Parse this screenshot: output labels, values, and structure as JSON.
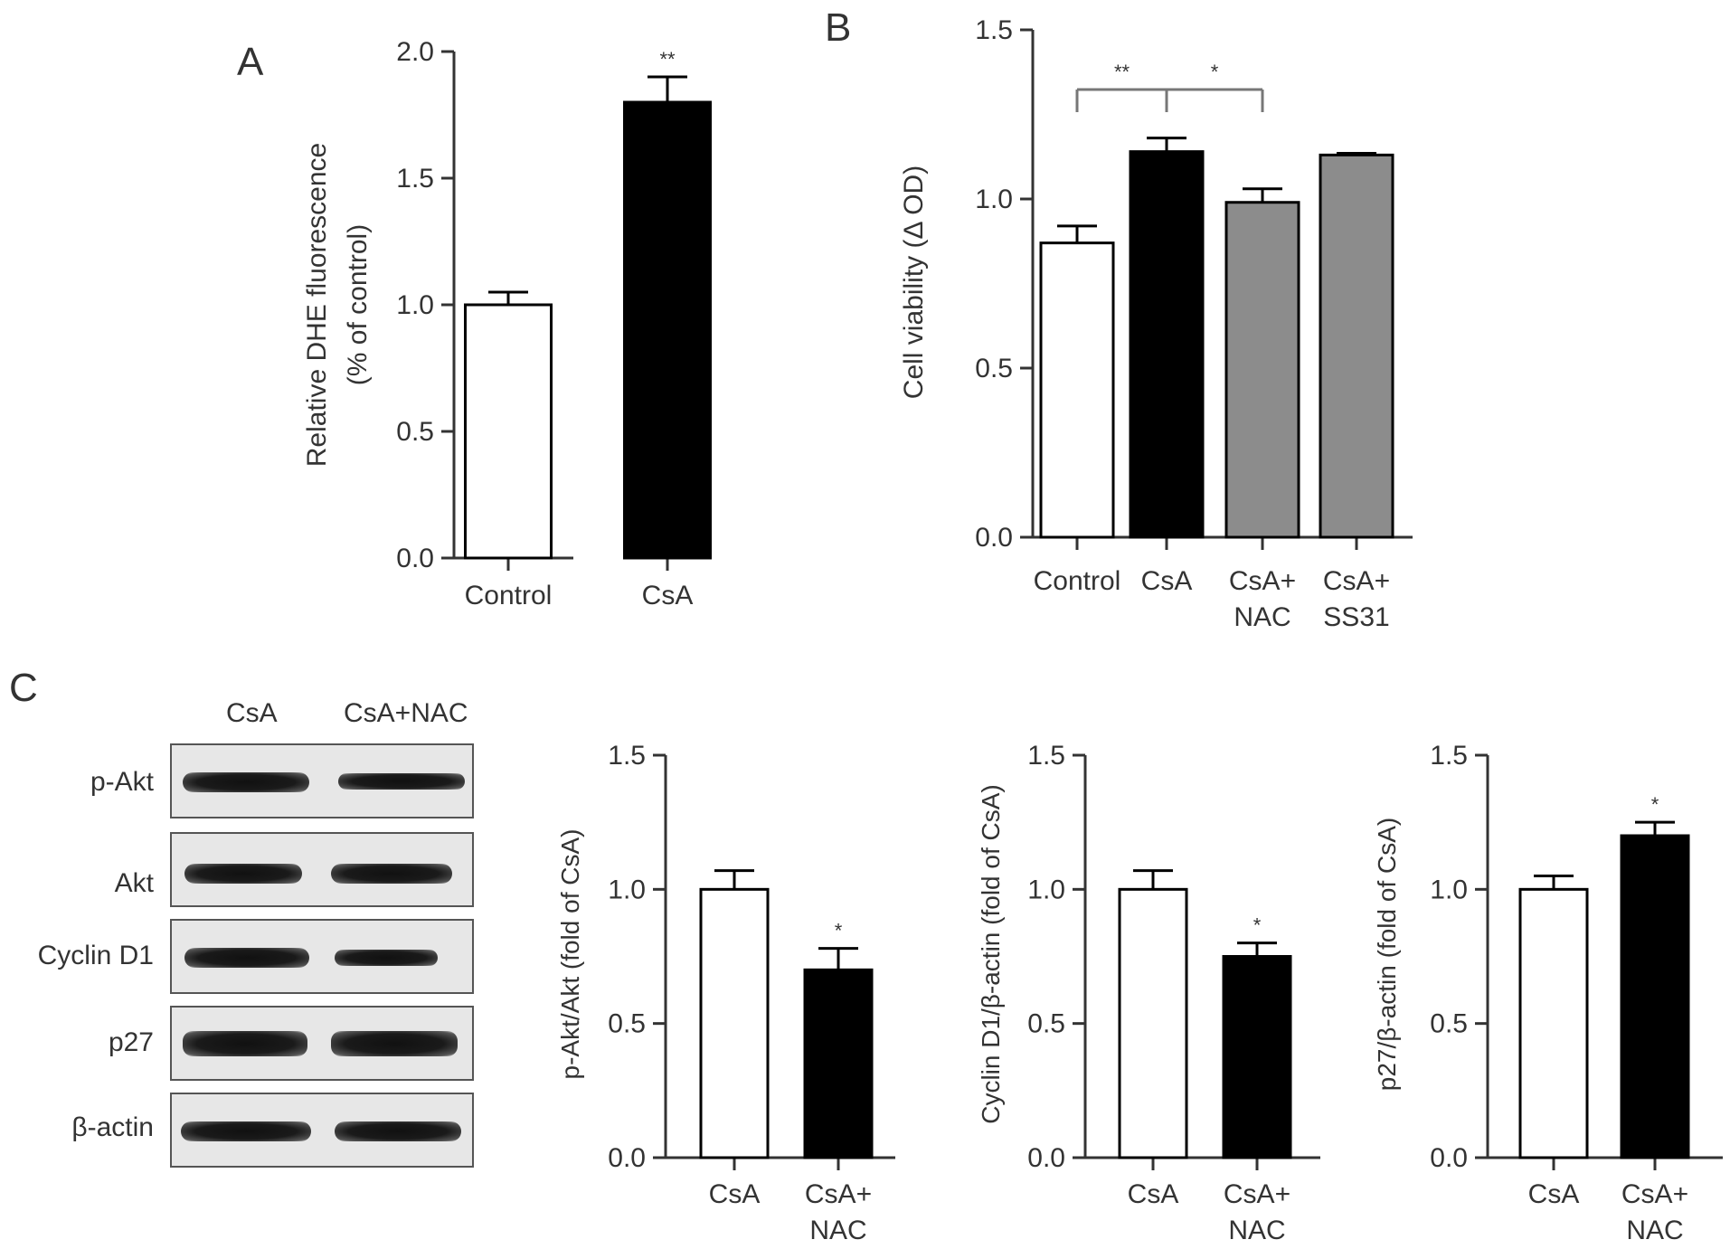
{
  "panels": {
    "A": {
      "letter": "A"
    },
    "B": {
      "letter": "B"
    },
    "C": {
      "letter": "C"
    }
  },
  "western_blot": {
    "lanes": [
      "CsA",
      "CsA+NAC"
    ],
    "rows": [
      "p-Akt",
      "Akt",
      "Cyclin D1",
      "p27",
      "β-actin"
    ]
  },
  "chart_data": [
    {
      "id": "A",
      "type": "bar",
      "categories": [
        "Control",
        "CsA"
      ],
      "values": [
        1.0,
        1.8
      ],
      "errors": [
        0.05,
        0.1
      ],
      "colors": [
        "#ffffff",
        "#000000"
      ],
      "significance": [
        "",
        "**"
      ],
      "ylabel": [
        "Relative DHE fluorescence",
        "(% of control)"
      ],
      "yticks": [
        "0.0",
        "0.5",
        "1.0",
        "1.5",
        "2.0"
      ],
      "ylim": [
        0,
        2.0
      ]
    },
    {
      "id": "B",
      "type": "bar",
      "categories": [
        [
          "Control"
        ],
        [
          "CsA"
        ],
        [
          "CsA+",
          "NAC"
        ],
        [
          "CsA+",
          "SS31"
        ]
      ],
      "values": [
        0.87,
        1.14,
        0.99,
        1.13
      ],
      "errors": [
        0.05,
        0.04,
        0.04,
        0.005
      ],
      "colors": [
        "#ffffff",
        "#000000",
        "#8c8c8c",
        "#8c8c8c"
      ],
      "ylabel": [
        "Cell viability (Δ OD)"
      ],
      "yticks": [
        "0.0",
        "0.5",
        "1.0",
        "1.5"
      ],
      "ylim": [
        0,
        1.5
      ],
      "brackets": [
        {
          "from": 0,
          "to": 1,
          "label": "**"
        },
        {
          "from": 1,
          "to": 2,
          "label": "*"
        }
      ]
    },
    {
      "id": "C1",
      "type": "bar",
      "categories": [
        [
          "CsA"
        ],
        [
          "CsA+",
          "NAC"
        ]
      ],
      "values": [
        1.0,
        0.7
      ],
      "errors": [
        0.07,
        0.08
      ],
      "colors": [
        "#ffffff",
        "#000000"
      ],
      "significance": [
        "",
        "*"
      ],
      "ylabel": [
        "p-Akt/Akt (fold of CsA)"
      ],
      "yticks": [
        "0.0",
        "0.5",
        "1.0",
        "1.5"
      ],
      "ylim": [
        0,
        1.5
      ]
    },
    {
      "id": "C2",
      "type": "bar",
      "categories": [
        [
          "CsA"
        ],
        [
          "CsA+",
          "NAC"
        ]
      ],
      "values": [
        1.0,
        0.75
      ],
      "errors": [
        0.07,
        0.05
      ],
      "colors": [
        "#ffffff",
        "#000000"
      ],
      "significance": [
        "",
        "*"
      ],
      "ylabel": [
        "Cyclin D1/β-actin (fold of CsA)"
      ],
      "yticks": [
        "0.0",
        "0.5",
        "1.0",
        "1.5"
      ],
      "ylim": [
        0,
        1.5
      ]
    },
    {
      "id": "C3",
      "type": "bar",
      "categories": [
        [
          "CsA"
        ],
        [
          "CsA+",
          "NAC"
        ]
      ],
      "values": [
        1.0,
        1.2
      ],
      "errors": [
        0.05,
        0.05
      ],
      "colors": [
        "#ffffff",
        "#000000"
      ],
      "significance": [
        "",
        "*"
      ],
      "ylabel": [
        "p27/β-actin (fold of CsA)"
      ],
      "yticks": [
        "0.0",
        "0.5",
        "1.0",
        "1.5"
      ],
      "ylim": [
        0,
        1.5
      ]
    }
  ]
}
